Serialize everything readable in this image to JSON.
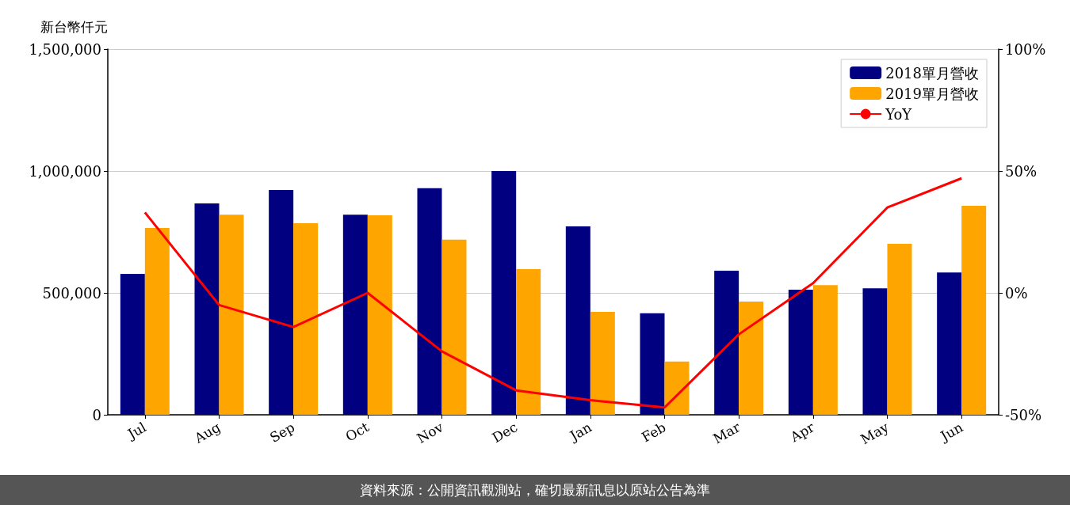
{
  "chart_data": {
    "type": "bar",
    "ylabel": "新台幣仟元",
    "categories": [
      "Jul",
      "Aug",
      "Sep",
      "Oct",
      "Nov",
      "Dec",
      "Jan",
      "Feb",
      "Mar",
      "Apr",
      "May",
      "Jun"
    ],
    "series": [
      {
        "name": "2018單月營收",
        "color": "#000080",
        "values": [
          578000,
          867000,
          922000,
          821000,
          929000,
          1000000,
          773000,
          416000,
          591000,
          513000,
          519000,
          584000
        ]
      },
      {
        "name": "2019單月營收",
        "color": "#ffa500",
        "values": [
          766000,
          821000,
          786000,
          818000,
          718000,
          597000,
          422000,
          218000,
          464000,
          532000,
          701000,
          857000
        ]
      },
      {
        "name": "YoY",
        "type": "line",
        "axis": "y2",
        "color": "#ff0000",
        "values": [
          33,
          -5,
          -14,
          0,
          -24,
          -40,
          -44,
          -47,
          -17,
          4,
          35,
          47
        ]
      }
    ],
    "ylim": [
      0,
      1500000
    ],
    "yticks": [
      {
        "value": 0,
        "label": "0"
      },
      {
        "value": 500000,
        "label": "500,000"
      },
      {
        "value": 1000000,
        "label": "1,000,000"
      },
      {
        "value": 1500000,
        "label": "1,500,000"
      }
    ],
    "y2lim": [
      -50,
      100
    ],
    "y2ticks": [
      {
        "value": -50,
        "label": "-50%"
      },
      {
        "value": 0,
        "label": "0%"
      },
      {
        "value": 50,
        "label": "50%"
      },
      {
        "value": 100,
        "label": "100%"
      }
    ],
    "grid": "y",
    "legend": "top right",
    "marker": "none",
    "annotations": [
      "資料來源：公開資訊觀測站，確切最新訊息以原站公告為準"
    ]
  }
}
